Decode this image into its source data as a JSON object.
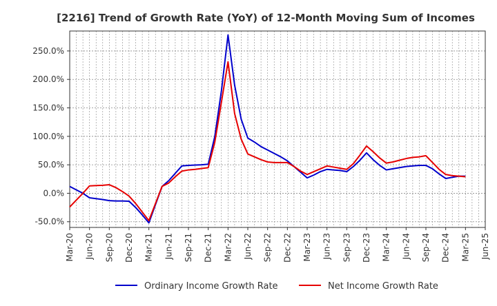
{
  "chart_data": {
    "type": "line",
    "title": "[2216]  Trend of Growth Rate (YoY) of 12-Month Moving Sum of Incomes",
    "xlabel": "",
    "ylabel": "",
    "grid": true,
    "legend_position": "bottom",
    "ylim": [
      -60,
      285
    ],
    "yticks": [
      -50,
      0,
      50,
      100,
      150,
      200,
      250
    ],
    "ytick_labels": [
      "-50.0%",
      "0.0%",
      "50.0%",
      "100.0%",
      "150.0%",
      "200.0%",
      "250.0%"
    ],
    "x": [
      "2020-03",
      "2020-04",
      "2020-05",
      "2020-06",
      "2020-07",
      "2020-08",
      "2020-09",
      "2020-10",
      "2020-11",
      "2020-12",
      "2021-01",
      "2021-02",
      "2021-03",
      "2021-04",
      "2021-05",
      "2021-06",
      "2021-07",
      "2021-08",
      "2021-09",
      "2021-10",
      "2021-11",
      "2021-12",
      "2022-01",
      "2022-02",
      "2022-03",
      "2022-04",
      "2022-05",
      "2022-06",
      "2022-07",
      "2022-08",
      "2022-09",
      "2022-10",
      "2022-11",
      "2022-12",
      "2023-01",
      "2023-02",
      "2023-03",
      "2023-04",
      "2023-05",
      "2023-06",
      "2023-07",
      "2023-08",
      "2023-09",
      "2023-10",
      "2023-11",
      "2023-12",
      "2024-01",
      "2024-02",
      "2024-03",
      "2024-04",
      "2024-05",
      "2024-06",
      "2024-07",
      "2024-08",
      "2024-09",
      "2024-10",
      "2024-11",
      "2024-12",
      "2025-01",
      "2025-02",
      "2025-03"
    ],
    "xticks": [
      "2020-03",
      "2020-06",
      "2020-09",
      "2020-12",
      "2021-03",
      "2021-06",
      "2021-09",
      "2021-12",
      "2022-03",
      "2022-06",
      "2022-09",
      "2022-12",
      "2023-03",
      "2023-06",
      "2023-09",
      "2023-12",
      "2024-03",
      "2024-06",
      "2024-09",
      "2024-12",
      "2025-03",
      "2025-06"
    ],
    "xtick_labels": [
      "Mar-20",
      "Jun-20",
      "Sep-20",
      "Dec-20",
      "Mar-21",
      "Jun-21",
      "Sep-21",
      "Dec-21",
      "Mar-22",
      "Jun-22",
      "Sep-22",
      "Dec-22",
      "Mar-23",
      "Jun-23",
      "Sep-23",
      "Dec-23",
      "Mar-24",
      "Jun-24",
      "Sep-24",
      "Dec-24",
      "Mar-25",
      "Jun-25"
    ],
    "series": [
      {
        "name": "Ordinary Income Growth Rate",
        "color": "#0000cc",
        "values": [
          12,
          6,
          0,
          -8,
          -9.5,
          -11,
          -13,
          -13.5,
          -13.5,
          -14,
          -25,
          -38,
          -52,
          -20,
          12,
          22,
          35,
          48,
          49,
          49.5,
          50,
          51,
          100,
          180,
          278,
          190,
          130,
          97,
          90,
          82,
          76,
          70,
          64,
          57,
          47,
          37,
          27,
          32,
          38,
          42,
          41,
          40,
          38,
          47,
          58,
          71,
          59,
          49,
          41,
          43,
          45,
          47,
          48,
          49,
          49,
          43,
          34,
          26,
          28,
          30,
          30
        ]
      },
      {
        "name": "Net Income Growth Rate",
        "color": "#e60000",
        "values": [
          -24,
          -12,
          0,
          13,
          13.5,
          14,
          15,
          10,
          3,
          -5,
          -18,
          -33,
          -48,
          -18,
          12,
          18,
          29,
          39,
          41,
          42,
          43.5,
          45,
          90,
          160,
          231,
          140,
          95,
          69,
          64,
          59,
          55,
          54,
          54,
          54,
          47,
          39,
          33,
          38,
          43,
          48,
          46,
          44,
          42,
          52,
          67,
          83,
          73,
          62,
          53,
          55,
          58,
          61,
          63,
          64,
          66,
          54,
          42,
          33,
          31,
          30,
          29
        ]
      }
    ]
  }
}
